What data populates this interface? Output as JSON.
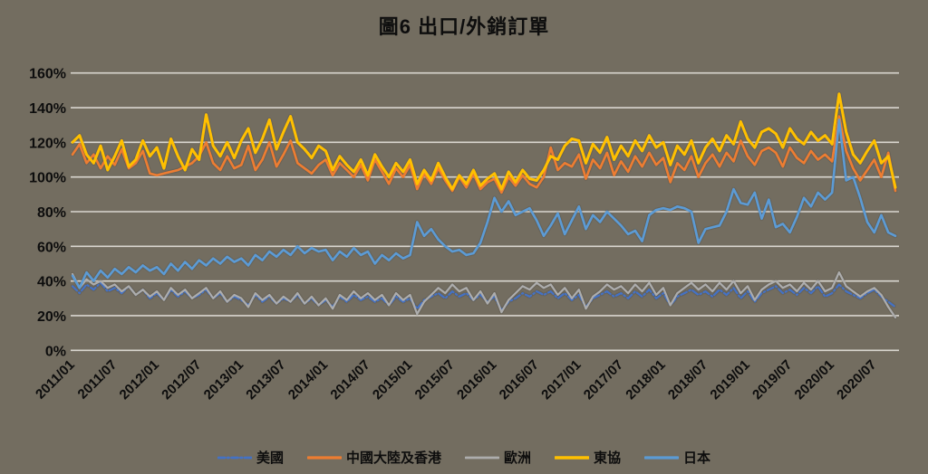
{
  "title": "圖6  出口/外銷訂單",
  "colors": {
    "background": "#736D60",
    "gridline": "#D9D6CF",
    "text": "#0D0D0D"
  },
  "chart_data": {
    "type": "line",
    "title": "圖6  出口/外銷訂單",
    "xlabel": "",
    "ylabel": "",
    "x_frequency": "monthly",
    "x_start": "2011/01",
    "x_end": "2020/10",
    "x_tick_labels": [
      "2011/01",
      "2011/07",
      "2012/01",
      "2012/07",
      "2013/01",
      "2013/07",
      "2014/01",
      "2014/07",
      "2015/01",
      "2015/07",
      "2016/01",
      "2016/07",
      "2017/01",
      "2017/07",
      "2018/01",
      "2018/07",
      "2019/01",
      "2019/07",
      "2020/01",
      "2020/07"
    ],
    "x_tick_every_n_months": 6,
    "ylim": [
      0,
      160
    ],
    "y_tick_step": 20,
    "y_tick_labels": [
      "0%",
      "20%",
      "40%",
      "60%",
      "80%",
      "100%",
      "120%",
      "140%",
      "160%"
    ],
    "grid": true,
    "legend_position": "bottom",
    "series": [
      {
        "id": "us",
        "name": "美國",
        "color": "#4472C4",
        "style": "dash-dot",
        "width": 2.2,
        "values": [
          37,
          33,
          38,
          35,
          39,
          34,
          36,
          33,
          37,
          32,
          35,
          30,
          33,
          29,
          35,
          31,
          34,
          30,
          32,
          35,
          30,
          33,
          28,
          31,
          29,
          26,
          32,
          28,
          31,
          27,
          30,
          28,
          32,
          27,
          30,
          26,
          29,
          25,
          31,
          28,
          32,
          29,
          31,
          28,
          30,
          26,
          31,
          28,
          30,
          24,
          29,
          31,
          33,
          30,
          34,
          31,
          33,
          29,
          32,
          28,
          31,
          23,
          28,
          30,
          33,
          31,
          34,
          32,
          34,
          30,
          33,
          29,
          32,
          25,
          30,
          32,
          34,
          31,
          33,
          30,
          34,
          31,
          35,
          30,
          33,
          26,
          31,
          33,
          35,
          32,
          34,
          31,
          35,
          32,
          36,
          30,
          34,
          28,
          33,
          35,
          37,
          33,
          35,
          32,
          36,
          33,
          37,
          31,
          33,
          38,
          34,
          32,
          30,
          33,
          35,
          31,
          28,
          25
        ]
      },
      {
        "id": "china-hk",
        "name": "中國大陸及香港",
        "color": "#ED7D31",
        "style": "solid",
        "width": 2.6,
        "values": [
          113,
          119,
          108,
          113,
          105,
          112,
          107,
          116,
          105,
          108,
          115,
          102,
          101,
          102,
          103,
          104,
          106,
          108,
          112,
          120,
          108,
          104,
          112,
          105,
          107,
          118,
          104,
          110,
          120,
          106,
          113,
          121,
          108,
          105,
          102,
          107,
          110,
          101,
          108,
          104,
          100,
          107,
          98,
          110,
          103,
          96,
          105,
          100,
          107,
          93,
          102,
          96,
          105,
          98,
          92,
          100,
          94,
          102,
          93,
          97,
          99,
          91,
          100,
          95,
          101,
          96,
          94,
          100,
          117,
          104,
          108,
          106,
          113,
          99,
          110,
          105,
          114,
          101,
          109,
          103,
          112,
          106,
          114,
          107,
          111,
          97,
          108,
          104,
          112,
          100,
          108,
          113,
          106,
          114,
          109,
          121,
          112,
          107,
          115,
          117,
          114,
          106,
          117,
          111,
          108,
          115,
          110,
          113,
          109,
          135,
          115,
          105,
          98,
          104,
          110,
          100,
          114,
          92
        ]
      },
      {
        "id": "europe",
        "name": "歐洲",
        "color": "#ADADAD",
        "style": "solid",
        "width": 2.2,
        "values": [
          44,
          36,
          41,
          38,
          40,
          36,
          38,
          34,
          37,
          32,
          35,
          31,
          34,
          29,
          36,
          32,
          35,
          30,
          33,
          36,
          30,
          34,
          28,
          32,
          30,
          25,
          33,
          29,
          32,
          27,
          31,
          28,
          33,
          27,
          31,
          26,
          30,
          24,
          32,
          29,
          34,
          30,
          33,
          29,
          32,
          26,
          33,
          29,
          32,
          21,
          28,
          32,
          36,
          33,
          38,
          34,
          36,
          29,
          34,
          27,
          33,
          22,
          29,
          33,
          37,
          35,
          39,
          36,
          38,
          32,
          36,
          30,
          35,
          24,
          31,
          34,
          38,
          35,
          37,
          33,
          38,
          34,
          39,
          32,
          36,
          26,
          33,
          36,
          39,
          35,
          38,
          34,
          39,
          35,
          40,
          33,
          37,
          29,
          35,
          38,
          40,
          36,
          38,
          34,
          39,
          35,
          40,
          34,
          36,
          45,
          37,
          34,
          31,
          34,
          36,
          32,
          25,
          19
        ]
      },
      {
        "id": "asean",
        "name": "東協",
        "color": "#FFC000",
        "style": "solid",
        "width": 3,
        "values": [
          120,
          124,
          113,
          108,
          118,
          104,
          112,
          121,
          106,
          110,
          121,
          112,
          117,
          105,
          122,
          112,
          104,
          116,
          110,
          136,
          118,
          112,
          120,
          111,
          121,
          128,
          114,
          122,
          133,
          116,
          126,
          135,
          120,
          116,
          111,
          118,
          115,
          104,
          112,
          107,
          103,
          110,
          101,
          113,
          106,
          100,
          108,
          103,
          110,
          96,
          104,
          98,
          108,
          100,
          93,
          101,
          96,
          104,
          95,
          99,
          102,
          93,
          103,
          97,
          104,
          99,
          98,
          104,
          112,
          110,
          118,
          122,
          121,
          108,
          119,
          114,
          123,
          110,
          118,
          112,
          121,
          115,
          124,
          117,
          120,
          107,
          118,
          113,
          121,
          108,
          117,
          122,
          115,
          124,
          119,
          132,
          122,
          117,
          126,
          128,
          125,
          117,
          128,
          122,
          119,
          126,
          121,
          124,
          119,
          148,
          126,
          113,
          108,
          115,
          121,
          108,
          112,
          94
        ]
      },
      {
        "id": "japan",
        "name": "日本",
        "color": "#5B9BD5",
        "style": "solid",
        "width": 2.6,
        "values": [
          43,
          36,
          45,
          40,
          46,
          42,
          47,
          44,
          48,
          45,
          49,
          46,
          48,
          44,
          50,
          46,
          51,
          47,
          52,
          49,
          53,
          50,
          54,
          51,
          53,
          49,
          55,
          52,
          57,
          54,
          58,
          55,
          60,
          56,
          59,
          57,
          58,
          52,
          57,
          54,
          59,
          55,
          57,
          50,
          55,
          52,
          56,
          53,
          55,
          74,
          66,
          70,
          64,
          60,
          57,
          58,
          55,
          56,
          62,
          74,
          88,
          80,
          86,
          78,
          80,
          82,
          75,
          66,
          72,
          79,
          67,
          75,
          83,
          70,
          78,
          74,
          80,
          76,
          72,
          67,
          69,
          63,
          78,
          81,
          82,
          81,
          83,
          82,
          80,
          62,
          70,
          71,
          72,
          80,
          93,
          85,
          84,
          91,
          76,
          87,
          71,
          73,
          68,
          77,
          88,
          83,
          91,
          87,
          91,
          133,
          98,
          100,
          88,
          74,
          68,
          78,
          68,
          66
        ]
      }
    ]
  }
}
